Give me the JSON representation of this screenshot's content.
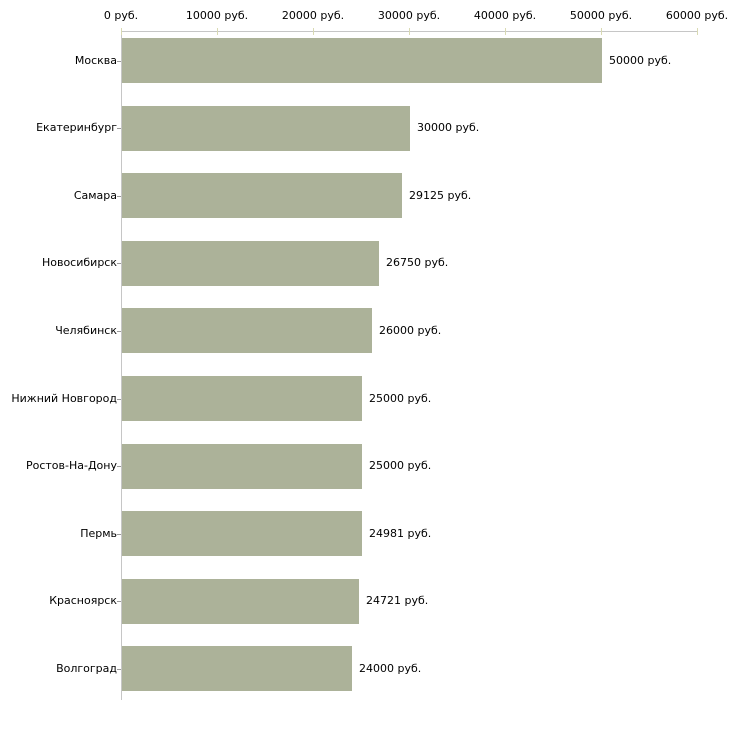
{
  "chart_data": {
    "type": "bar",
    "orientation": "horizontal",
    "title": "",
    "categories": [
      "Москва",
      "Екатеринбург",
      "Самара",
      "Новосибирск",
      "Челябинск",
      "Нижний Новгород",
      "Ростов-На-Дону",
      "Пермь",
      "Красноярск",
      "Волгоград"
    ],
    "values": [
      50000,
      30000,
      29125,
      26750,
      26000,
      25000,
      25000,
      24981,
      24721,
      24000
    ],
    "value_labels": [
      "50000 руб.",
      "30000 руб.",
      "29125 руб.",
      "26750 руб.",
      "26000 руб.",
      "25000 руб.",
      "25000 руб.",
      "24981 руб.",
      "24721 руб.",
      "24000 руб."
    ],
    "x_axis": {
      "position": "top",
      "min": 0,
      "max": 60000,
      "tick_values": [
        0,
        10000,
        20000,
        30000,
        40000,
        50000,
        60000
      ],
      "tick_labels": [
        "0 руб.",
        "10000 руб.",
        "20000 руб.",
        "30000 руб.",
        "40000 руб.",
        "50000 руб.",
        "60000 руб."
      ]
    },
    "legend": "none",
    "grid": "off",
    "colors": {
      "bar": "#acb299",
      "axis_line": "#c6c6c6",
      "tick_mark": "#d9dab3",
      "category_tick": "#9b9b9b",
      "text": "#000000",
      "background": "#ffffff"
    }
  }
}
